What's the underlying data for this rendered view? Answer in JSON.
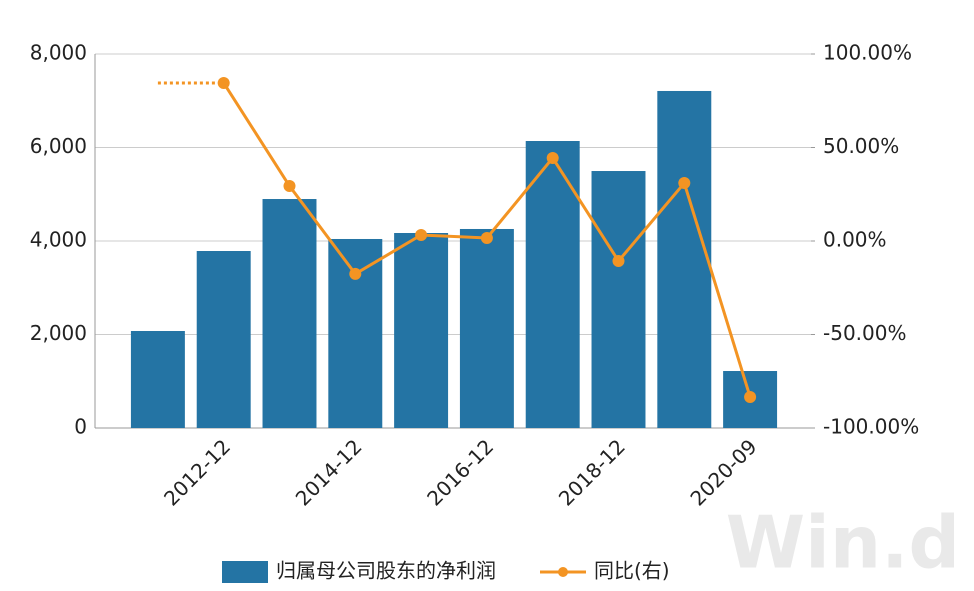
{
  "chart_data": {
    "type": "bar-line",
    "categories": [
      null,
      "2012-12",
      null,
      "2014-12",
      null,
      "2016-12",
      null,
      "2018-12",
      null,
      "2020-09"
    ],
    "series": [
      {
        "name": "归属母公司股东的净利润",
        "color": "#2474a4",
        "type": "bar",
        "values": [
          2075,
          3786,
          4898,
          4043,
          4171,
          4257,
          6139,
          5497,
          7209,
          1219
        ]
      },
      {
        "name": "同比(右)",
        "color": "#f39423",
        "type": "line",
        "axis": "y2",
        "values": [
          null,
          84.5,
          29.4,
          -17.6,
          3.2,
          1.6,
          44.4,
          -10.7,
          31,
          -83.4
        ]
      }
    ],
    "ylim": [
      0,
      8000
    ],
    "yticks": [
      {
        "value": 0,
        "label": "0"
      },
      {
        "value": 2000,
        "label": "2,000"
      },
      {
        "value": 4000,
        "label": "4,000"
      },
      {
        "value": 6000,
        "label": "6,000"
      },
      {
        "value": 8000,
        "label": "8,000"
      }
    ],
    "y2lim": [
      -100,
      100
    ],
    "y2ticks": [
      {
        "value": -100,
        "label": "-100.00%"
      },
      {
        "value": -50,
        "label": "-50.00%"
      },
      {
        "value": 0,
        "label": "0.00%"
      },
      {
        "value": 50,
        "label": "50.00%"
      },
      {
        "value": 100,
        "label": "100.00%"
      }
    ],
    "grid": true,
    "legend": "bottom",
    "watermark": "Win.d"
  }
}
